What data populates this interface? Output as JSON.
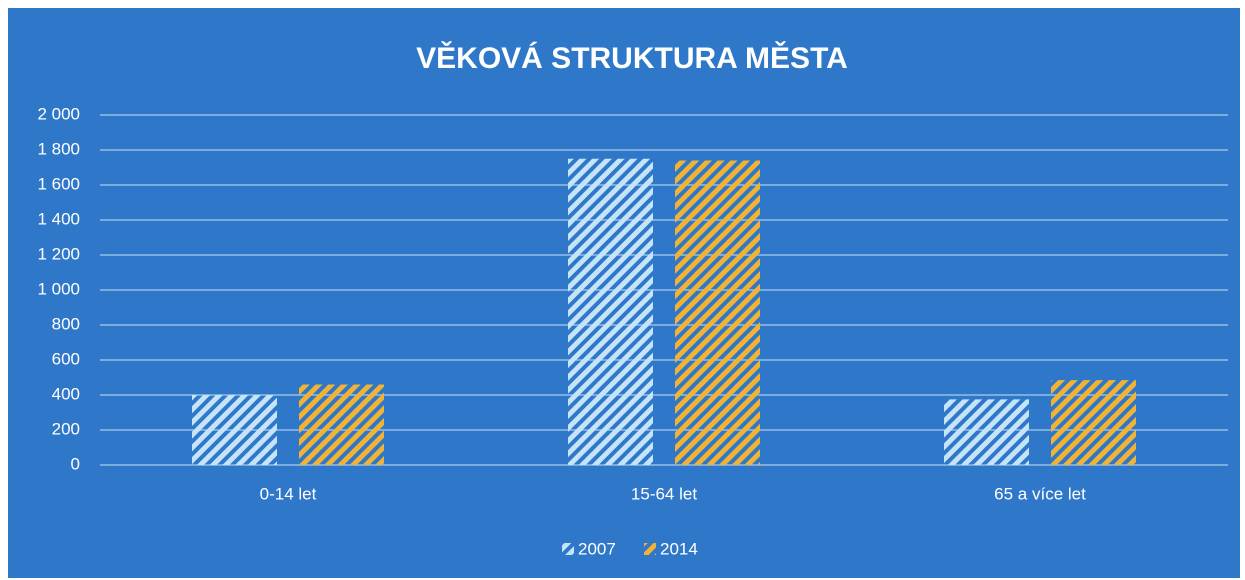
{
  "chart_data": {
    "type": "bar",
    "title": "VĚKOVÁ STRUKTURA MĚSTA",
    "categories": [
      "0-14 let",
      "15-64 let",
      "65 a více let"
    ],
    "series": [
      {
        "name": "2007",
        "color": "#c6e4f7",
        "values": [
          400,
          1750,
          375
        ]
      },
      {
        "name": "2014",
        "color": "#f2b233",
        "values": [
          460,
          1740,
          485
        ]
      }
    ],
    "ylim": [
      0,
      2000
    ],
    "yticks": [
      0,
      200,
      400,
      600,
      800,
      {
        "value": 1000,
        "label": "1 000"
      },
      {
        "value": 1200,
        "label": "1 200"
      },
      {
        "value": 1400,
        "label": "1 400"
      },
      {
        "value": 1600,
        "label": "1 600"
      },
      {
        "value": 1800,
        "label": "1 800"
      },
      {
        "value": 2000,
        "label": "2 000"
      }
    ],
    "grid": true,
    "legend": "bottom"
  }
}
